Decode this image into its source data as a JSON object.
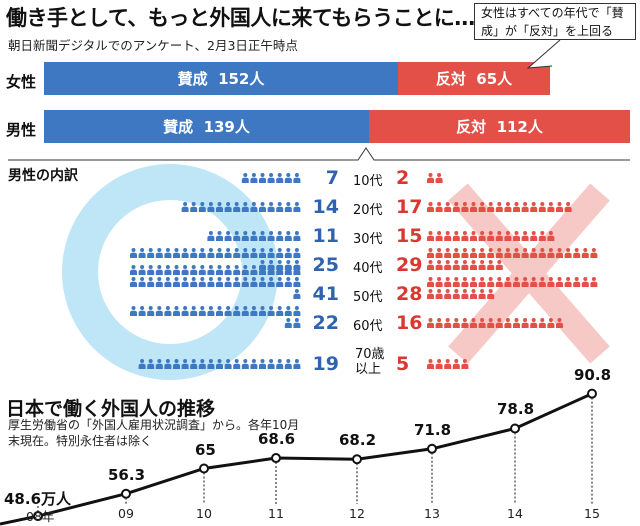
{
  "headline": "働き手として、もっと外国人に来てもらうことに…",
  "source": "朝日新聞デジタルでのアンケート、2月3日正午時点",
  "callout": "女性はすべての年代で「賛成」が「反対」を上回る",
  "summary": [
    {
      "label": "女性",
      "yes_label": "賛成",
      "yes": 152,
      "no_label": "反対",
      "no": 65,
      "unit": "人"
    },
    {
      "label": "男性",
      "yes_label": "賛成",
      "yes": 139,
      "no_label": "反対",
      "no": 112,
      "unit": "人"
    }
  ],
  "breakdown_title": "男性の内訳",
  "chart_data": [
    {
      "type": "bar",
      "categories": [
        "女性",
        "男性"
      ],
      "series": [
        {
          "name": "賛成",
          "values": [
            152,
            139
          ]
        },
        {
          "name": "反対",
          "values": [
            65,
            112
          ]
        }
      ]
    },
    {
      "type": "bar",
      "title": "男性の内訳",
      "categories": [
        "10代",
        "20代",
        "30代",
        "40代",
        "50代",
        "60代",
        "70歳以上"
      ],
      "series": [
        {
          "name": "賛成",
          "values": [
            7,
            14,
            11,
            25,
            41,
            22,
            19
          ]
        },
        {
          "name": "反対",
          "values": [
            2,
            17,
            15,
            29,
            28,
            16,
            5
          ]
        }
      ]
    },
    {
      "type": "line",
      "title": "日本で働く外国人の推移",
      "x": [
        "08年",
        "09",
        "10",
        "11",
        "12",
        "13",
        "14",
        "15"
      ],
      "values": [
        48.6,
        56.3,
        65,
        68.6,
        68.2,
        71.8,
        78.8,
        90.8
      ],
      "value_labels": [
        "48.6万人",
        "56.3",
        "65",
        "68.6",
        "68.2",
        "71.8",
        "78.8",
        "90.8"
      ]
    }
  ],
  "trend": {
    "title": "日本で働く外国人の推移",
    "note": "厚生労働省の「外国人雇用状況調査」から。各年10月末現在。特別永住者は除く"
  },
  "colors": {
    "yes": "#3f78c2",
    "no": "#e25047",
    "circle": "#bfe6f7",
    "cross": "#f6c9c6"
  }
}
